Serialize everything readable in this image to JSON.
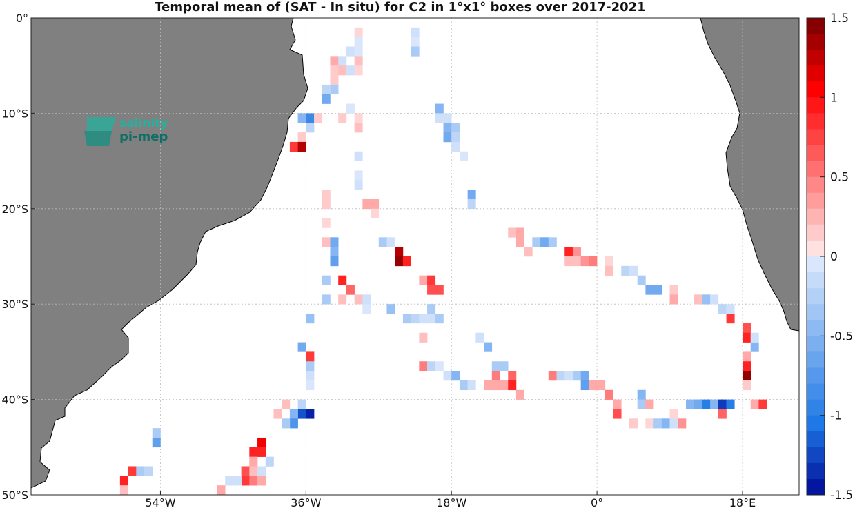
{
  "title": "Temporal mean of (SAT - In situ) for C2 in 1°x1° boxes over 2017-2021",
  "map": {
    "lon_range": [
      -70,
      25
    ],
    "lat_range": [
      -50,
      0
    ],
    "x_ticks": [
      {
        "lon": -54,
        "label": "54°W"
      },
      {
        "lon": -36,
        "label": "36°W"
      },
      {
        "lon": -18,
        "label": "18°W"
      },
      {
        "lon": 0,
        "label": "0°"
      },
      {
        "lon": 18,
        "label": "18°E"
      }
    ],
    "y_ticks": [
      {
        "lat": 0,
        "label": "0°"
      },
      {
        "lat": -10,
        "label": "10°S"
      },
      {
        "lat": -20,
        "label": "20°S"
      },
      {
        "lat": -30,
        "label": "30°S"
      },
      {
        "lat": -40,
        "label": "40°S"
      },
      {
        "lat": -50,
        "label": "50°S"
      }
    ],
    "land_color": "#808080",
    "grid": true
  },
  "colorbar": {
    "range": [
      -1.5,
      1.5
    ],
    "ticks": [
      {
        "value": 1.5,
        "label": "1.5"
      },
      {
        "value": 1,
        "label": "1"
      },
      {
        "value": 0.5,
        "label": "0.5"
      },
      {
        "value": 0,
        "label": "0"
      },
      {
        "value": -0.5,
        "label": "-0.5"
      },
      {
        "value": -1,
        "label": "-1"
      },
      {
        "value": -1.5,
        "label": "-1.5"
      }
    ]
  },
  "logo": {
    "line1": "salinity",
    "line2": "pi-mep"
  },
  "chart_data": {
    "type": "heatmap",
    "x_units": "longitude (deg E)",
    "y_units": "latitude (deg)",
    "cells": [
      [
        -30,
        -1,
        0.1
      ],
      [
        -23,
        -1,
        -0.1
      ],
      [
        -30,
        -2,
        -0.05
      ],
      [
        -23,
        -2,
        -0.05
      ],
      [
        -23,
        -3,
        -0.3
      ],
      [
        -31,
        -3,
        -0.1
      ],
      [
        -30,
        -3,
        -0.05
      ],
      [
        -33,
        -4,
        0.3
      ],
      [
        -32,
        -4,
        -0.1
      ],
      [
        -31,
        -5,
        -0.1
      ],
      [
        -30,
        -4,
        0.2
      ],
      [
        -30,
        -5,
        0.1
      ],
      [
        -33,
        -5,
        0.15
      ],
      [
        -32,
        -5,
        0.2
      ],
      [
        -33,
        -6,
        0.15
      ],
      [
        -33,
        -7,
        -0.3
      ],
      [
        -34,
        -7,
        -0.2
      ],
      [
        -34,
        -8,
        -0.6
      ],
      [
        -31,
        -9,
        -0.05
      ],
      [
        -36,
        -10,
        -0.9
      ],
      [
        -37,
        -10,
        -0.5
      ],
      [
        -35,
        -10,
        0.15
      ],
      [
        -32,
        -10,
        0.15
      ],
      [
        -36,
        -11,
        -0.2
      ],
      [
        -30,
        -10,
        0.1
      ],
      [
        -30,
        -11,
        0.2
      ],
      [
        -20,
        -9,
        -0.5
      ],
      [
        -20,
        -10,
        -0.1
      ],
      [
        -19,
        -10,
        -0.1
      ],
      [
        -19,
        -11,
        -0.5
      ],
      [
        -18,
        -11,
        -0.3
      ],
      [
        -19,
        -12,
        -0.6
      ],
      [
        -18,
        -12,
        -0.2
      ],
      [
        -18,
        -13,
        -0.1
      ],
      [
        -17,
        -14,
        -0.05
      ],
      [
        -37,
        -12,
        0.15
      ],
      [
        -38,
        -13,
        0.8
      ],
      [
        -37,
        -13,
        1.3
      ],
      [
        -30,
        -14,
        -0.1
      ],
      [
        -30,
        -16,
        -0.05
      ],
      [
        -30,
        -17,
        -0.1
      ],
      [
        -16,
        -18,
        -0.6
      ],
      [
        -16,
        -19,
        -0.2
      ],
      [
        -34,
        -18,
        0.15
      ],
      [
        -34,
        -19,
        0.15
      ],
      [
        -28,
        -19,
        0.3
      ],
      [
        -29,
        -19,
        0.3
      ],
      [
        -28,
        -20,
        0.1
      ],
      [
        -34,
        -21,
        0.1
      ],
      [
        -11,
        -22,
        0.2
      ],
      [
        -10,
        -22,
        0.3
      ],
      [
        -10,
        -23,
        0.3
      ],
      [
        -9,
        -24,
        0.2
      ],
      [
        -8,
        -23,
        -0.3
      ],
      [
        -7,
        -23,
        -0.6
      ],
      [
        -6,
        -23,
        -0.3
      ],
      [
        -34,
        -23,
        0.2
      ],
      [
        -33,
        -23,
        -0.6
      ],
      [
        -33,
        -24,
        -0.5
      ],
      [
        -33,
        -25,
        -0.7
      ],
      [
        -27,
        -23,
        -0.3
      ],
      [
        -26,
        -23,
        -0.1
      ],
      [
        -25,
        -24,
        1.3
      ],
      [
        -25,
        -25,
        1.4
      ],
      [
        -24,
        -25,
        0.9
      ],
      [
        -4,
        -24,
        0.9
      ],
      [
        -3,
        -24,
        0.4
      ],
      [
        -4,
        -25,
        0.2
      ],
      [
        -3,
        -25,
        0.2
      ],
      [
        -2,
        -25,
        0.4
      ],
      [
        -1,
        -25,
        0.5
      ],
      [
        1,
        -25,
        0.1
      ],
      [
        1,
        -26,
        0.2
      ],
      [
        3,
        -26,
        -0.2
      ],
      [
        4,
        -26,
        -0.1
      ],
      [
        5,
        -27,
        -0.3
      ],
      [
        6,
        -28,
        -0.6
      ],
      [
        7,
        -28,
        -0.6
      ],
      [
        9,
        -28,
        0.15
      ],
      [
        9,
        -29,
        0.3
      ],
      [
        -34,
        -27,
        -0.3
      ],
      [
        -32,
        -27,
        0.9
      ],
      [
        -31,
        -28,
        0.6
      ],
      [
        -22,
        -27,
        0.3
      ],
      [
        -21,
        -27,
        0.8
      ],
      [
        -21,
        -28,
        0.7
      ],
      [
        -20,
        -28,
        0.7
      ],
      [
        -34,
        -29,
        -0.3
      ],
      [
        -32,
        -29,
        0.2
      ],
      [
        -30,
        -29,
        0.2
      ],
      [
        -29,
        -29,
        -0.1
      ],
      [
        -29,
        -30,
        -0.05
      ],
      [
        -26,
        -30,
        -0.4
      ],
      [
        -21,
        -30,
        -0.3
      ],
      [
        -36,
        -31,
        -0.4
      ],
      [
        -24,
        -31,
        -0.3
      ],
      [
        -23,
        -31,
        -0.2
      ],
      [
        -22,
        -31,
        -0.1
      ],
      [
        -21,
        -31,
        -0.1
      ],
      [
        -20,
        -31,
        -0.3
      ],
      [
        12,
        -29,
        0.2
      ],
      [
        13,
        -29,
        -0.4
      ],
      [
        14,
        -29,
        -0.1
      ],
      [
        15,
        -30,
        -0.2
      ],
      [
        16,
        -30,
        -0.1
      ],
      [
        16,
        -31,
        0.8
      ],
      [
        18,
        -32,
        0.7
      ],
      [
        18,
        -33,
        0.9
      ],
      [
        -22,
        -33,
        0.2
      ],
      [
        -15,
        -33,
        -0.1
      ],
      [
        -14,
        -34,
        -0.5
      ],
      [
        -37,
        -34,
        -0.6
      ],
      [
        -36,
        -35,
        0.8
      ],
      [
        -36,
        -36,
        -0.3
      ],
      [
        -36,
        -37,
        -0.1
      ],
      [
        -36,
        -38,
        -0.05
      ],
      [
        -22,
        -36,
        0.5
      ],
      [
        -21,
        -36,
        -0.2
      ],
      [
        -20,
        -36,
        -0.05
      ],
      [
        -19,
        -37,
        -0.1
      ],
      [
        -18,
        -37,
        -0.5
      ],
      [
        -17,
        -38,
        -0.3
      ],
      [
        -16,
        -38,
        -0.1
      ],
      [
        -13,
        -36,
        -0.3
      ],
      [
        -12,
        -36,
        -0.3
      ],
      [
        -13,
        -37,
        0.5
      ],
      [
        -11,
        -37,
        0.6
      ],
      [
        -14,
        -38,
        0.3
      ],
      [
        -13,
        -38,
        0.3
      ],
      [
        -12,
        -38,
        0.3
      ],
      [
        -11,
        -38,
        0.9
      ],
      [
        -10,
        -39,
        0.3
      ],
      [
        -6,
        -37,
        0.5
      ],
      [
        -5,
        -37,
        -0.2
      ],
      [
        -4,
        -37,
        -0.1
      ],
      [
        -3,
        -37,
        -0.3
      ],
      [
        -2,
        -37,
        -0.6
      ],
      [
        -2,
        -38,
        -0.7
      ],
      [
        -1,
        -38,
        0.3
      ],
      [
        0,
        -38,
        0.3
      ],
      [
        1,
        -39,
        0.5
      ],
      [
        2,
        -40,
        0.3
      ],
      [
        2,
        -41,
        0.7
      ],
      [
        18,
        -35,
        0.3
      ],
      [
        18,
        -36,
        0.9
      ],
      [
        18,
        -37,
        1.4
      ],
      [
        18,
        -38,
        0.15
      ],
      [
        19,
        -34,
        -0.5
      ],
      [
        19,
        -33,
        -0.1
      ],
      [
        19,
        -40,
        0.3
      ],
      [
        20,
        -40,
        0.8
      ],
      [
        5,
        -39,
        -0.5
      ],
      [
        5,
        -40,
        -0.3
      ],
      [
        6,
        -40,
        0.3
      ],
      [
        4,
        -42,
        0.15
      ],
      [
        6,
        -42,
        0.1
      ],
      [
        7,
        -42,
        -0.3
      ],
      [
        8,
        -42,
        -0.5
      ],
      [
        9,
        -42,
        -0.1
      ],
      [
        9,
        -41,
        0.1
      ],
      [
        10,
        -42,
        0.4
      ],
      [
        11,
        -40,
        -0.5
      ],
      [
        12,
        -40,
        -0.6
      ],
      [
        13,
        -40,
        -1.0
      ],
      [
        14,
        -40,
        -0.5
      ],
      [
        15,
        -40,
        -1.3
      ],
      [
        16,
        -40,
        -1.0
      ],
      [
        15,
        -41,
        0.6
      ],
      [
        -37,
        -40,
        -0.2
      ],
      [
        -37,
        -41,
        -1.2
      ],
      [
        -36,
        -41,
        -1.4
      ],
      [
        -38,
        -41,
        -0.5
      ],
      [
        -38,
        -42,
        -0.8
      ],
      [
        -39,
        -42,
        -0.3
      ],
      [
        -39,
        -40,
        0.2
      ],
      [
        -40,
        -41,
        0.2
      ],
      [
        -55,
        -43,
        -0.3
      ],
      [
        -55,
        -44,
        -0.7
      ],
      [
        -42,
        -44,
        1.1
      ],
      [
        -42,
        -45,
        0.9
      ],
      [
        -43,
        -45,
        0.9
      ],
      [
        -43,
        -46,
        0.3
      ],
      [
        -41,
        -46,
        -0.2
      ],
      [
        -42,
        -47,
        -0.1
      ],
      [
        -44,
        -47,
        0.7
      ],
      [
        -43,
        -47,
        0.2
      ],
      [
        -44,
        -48,
        0.8
      ],
      [
        -43,
        -48,
        0.5
      ],
      [
        -42,
        -48,
        0.3
      ],
      [
        -45,
        -48,
        -0.1
      ],
      [
        -46,
        -48,
        -0.1
      ],
      [
        -47,
        -49,
        0.3
      ],
      [
        -58,
        -47,
        0.8
      ],
      [
        -57,
        -47,
        -0.3
      ],
      [
        -56,
        -47,
        -0.2
      ],
      [
        -59,
        -48,
        0.9
      ],
      [
        -59,
        -49,
        0.2
      ]
    ]
  }
}
